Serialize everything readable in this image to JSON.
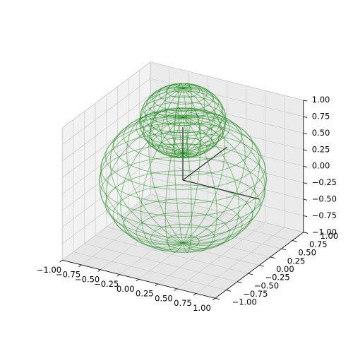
{
  "chart_data": {
    "type": "wireframe3d",
    "xlim": [
      -1,
      1
    ],
    "ylim": [
      -1,
      1
    ],
    "zlim": [
      -1,
      1
    ],
    "xticks": [
      {
        "value": -1,
        "label": "−1.00"
      },
      {
        "value": -0.75,
        "label": "−0.75"
      },
      {
        "value": -0.5,
        "label": "−0.50"
      },
      {
        "value": -0.25,
        "label": "−0.25"
      },
      {
        "value": 0,
        "label": "0.00"
      },
      {
        "value": 0.25,
        "label": "0.25"
      },
      {
        "value": 0.5,
        "label": "0.50"
      },
      {
        "value": 0.75,
        "label": "0.75"
      },
      {
        "value": 1,
        "label": "1.00"
      }
    ],
    "yticks": [
      {
        "value": -1,
        "label": "−1.00"
      },
      {
        "value": -0.75,
        "label": "−0.75"
      },
      {
        "value": -0.5,
        "label": "−0.50"
      },
      {
        "value": -0.25,
        "label": "−0.25"
      },
      {
        "value": 0,
        "label": "0.00"
      },
      {
        "value": 0.25,
        "label": "0.25"
      },
      {
        "value": 0.5,
        "label": "0.50"
      },
      {
        "value": 0.75,
        "label": "0.75"
      },
      {
        "value": 1,
        "label": "1.00"
      }
    ],
    "zticks": [
      {
        "value": -1,
        "label": "−1.00"
      },
      {
        "value": -0.75,
        "label": "−0.75"
      },
      {
        "value": -0.5,
        "label": "−0.50"
      },
      {
        "value": -0.25,
        "label": "−0.25"
      },
      {
        "value": 0,
        "label": "0.00"
      },
      {
        "value": 0.25,
        "label": "0.25"
      },
      {
        "value": 0.5,
        "label": "0.50"
      },
      {
        "value": 0.75,
        "label": "0.75"
      },
      {
        "value": 1,
        "label": "1.00"
      }
    ],
    "grid": true,
    "color": "#008000",
    "surfaces": [
      {
        "center": [
          0,
          0,
          0
        ],
        "radius": 0.95
      },
      {
        "center": [
          0,
          0,
          0.9
        ],
        "radius": 0.49
      }
    ],
    "axis_lines": [
      [
        1,
        0,
        0
      ],
      [
        0,
        1,
        0
      ],
      [
        0,
        0,
        0.8
      ]
    ]
  }
}
